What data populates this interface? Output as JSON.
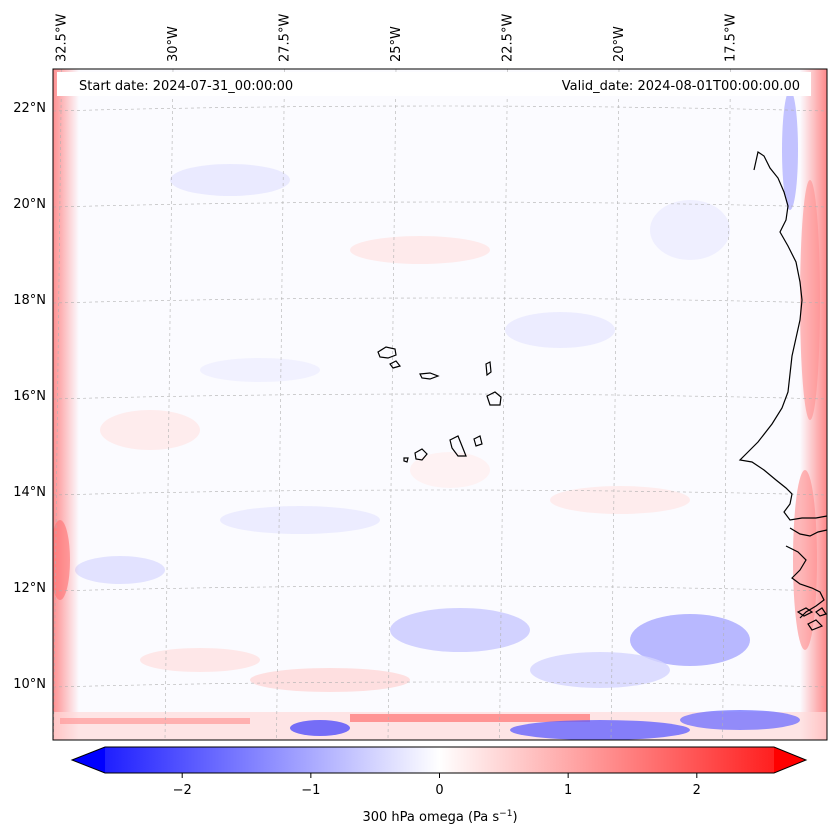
{
  "map": {
    "header": {
      "start_label": "Start date: 2024-07-31_00:00:00",
      "valid_label": "Valid_date: 2024-08-01T00:00:00.00"
    },
    "extent": {
      "lon_west": -32.9,
      "lon_east": -15.6,
      "lat_south": 8.9,
      "lat_north": 22.8
    },
    "longitude_ticks": [
      {
        "value": -32.5,
        "label": "32.5°W"
      },
      {
        "value": -30.0,
        "label": "30°W"
      },
      {
        "value": -27.5,
        "label": "27.5°W"
      },
      {
        "value": -25.0,
        "label": "25°W"
      },
      {
        "value": -22.5,
        "label": "22.5°W"
      },
      {
        "value": -20.0,
        "label": "20°W"
      },
      {
        "value": -17.5,
        "label": "17.5°W"
      }
    ],
    "latitude_ticks": [
      {
        "value": 10,
        "label": "10°N"
      },
      {
        "value": 12,
        "label": "12°N"
      },
      {
        "value": 14,
        "label": "14°N"
      },
      {
        "value": 16,
        "label": "16°N"
      },
      {
        "value": 18,
        "label": "18°N"
      },
      {
        "value": 20,
        "label": "20°N"
      },
      {
        "value": 22,
        "label": "22°N"
      }
    ],
    "gridlines": true,
    "field": "300 hPa omega",
    "colormap": "bwr",
    "colors": {
      "negative": "#0000ff",
      "zero": "#ffffff",
      "positive": "#ff0000",
      "coastline": "#000000",
      "grid": "#b0b0b0"
    }
  },
  "colorbar": {
    "min": -2.6,
    "max": 2.6,
    "extend": "both",
    "ticks": [
      {
        "value": -2,
        "label": "−2"
      },
      {
        "value": -1,
        "label": "−1"
      },
      {
        "value": 0,
        "label": "0"
      },
      {
        "value": 1,
        "label": "1"
      },
      {
        "value": 2,
        "label": "2"
      }
    ],
    "label_main": "300 hPa omega (Pa s",
    "label_exp": "−1",
    "label_close": ")"
  }
}
